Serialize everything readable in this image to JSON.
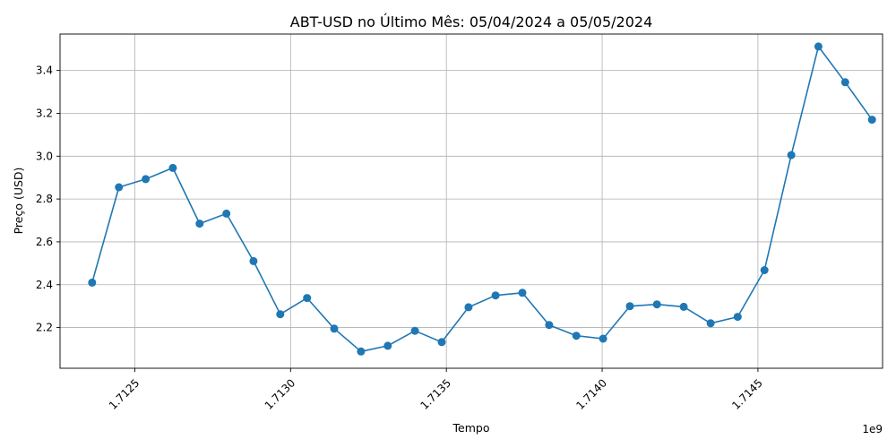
{
  "chart_data": {
    "type": "line",
    "title": "ABT-USD no Último Mês: 05/04/2024 a 05/05/2024",
    "xlabel": "Tempo",
    "ylabel": "Preço (USD)",
    "x_offset_label": "1e9",
    "x_ticks": [
      {
        "value": 1712500000,
        "label": "1.7125"
      },
      {
        "value": 1713000000,
        "label": "1.7130"
      },
      {
        "value": 1713500000,
        "label": "1.7135"
      },
      {
        "value": 1714000000,
        "label": "1.7140"
      },
      {
        "value": 1714500000,
        "label": "1.7145"
      }
    ],
    "y_ticks": [
      {
        "value": 2.2,
        "label": "2.2"
      },
      {
        "value": 2.4,
        "label": "2.4"
      },
      {
        "value": 2.6,
        "label": "2.6"
      },
      {
        "value": 2.8,
        "label": "2.8"
      },
      {
        "value": 3.0,
        "label": "3.0"
      },
      {
        "value": 3.2,
        "label": "3.2"
      },
      {
        "value": 3.4,
        "label": "3.4"
      }
    ],
    "xlim": [
      1712260000,
      1714900000
    ],
    "ylim": [
      2.01,
      3.57
    ],
    "grid": true,
    "color": "#1f77b4",
    "series": [
      {
        "x": [
          1712363000,
          1712449000,
          1712535000,
          1712622000,
          1712708000,
          1712794000,
          1712881000,
          1712967000,
          1713053000,
          1713140000,
          1713226000,
          1713312000,
          1713399000,
          1713485000,
          1713571000,
          1713658000,
          1713744000,
          1713830000,
          1713917000,
          1714003000,
          1714089000,
          1714176000,
          1714262000,
          1714348000,
          1714435000,
          1714521000,
          1714607000,
          1714694000,
          1714780000,
          1714866000
        ],
        "values": [
          2.41,
          2.855,
          2.893,
          2.945,
          2.685,
          2.732,
          2.51,
          2.262,
          2.338,
          2.195,
          2.088,
          2.115,
          2.185,
          2.132,
          2.295,
          2.35,
          2.362,
          2.212,
          2.162,
          2.148,
          2.3,
          2.308,
          2.297,
          2.22,
          2.25,
          2.468,
          3.005,
          3.512,
          3.345,
          3.17
        ]
      }
    ]
  }
}
